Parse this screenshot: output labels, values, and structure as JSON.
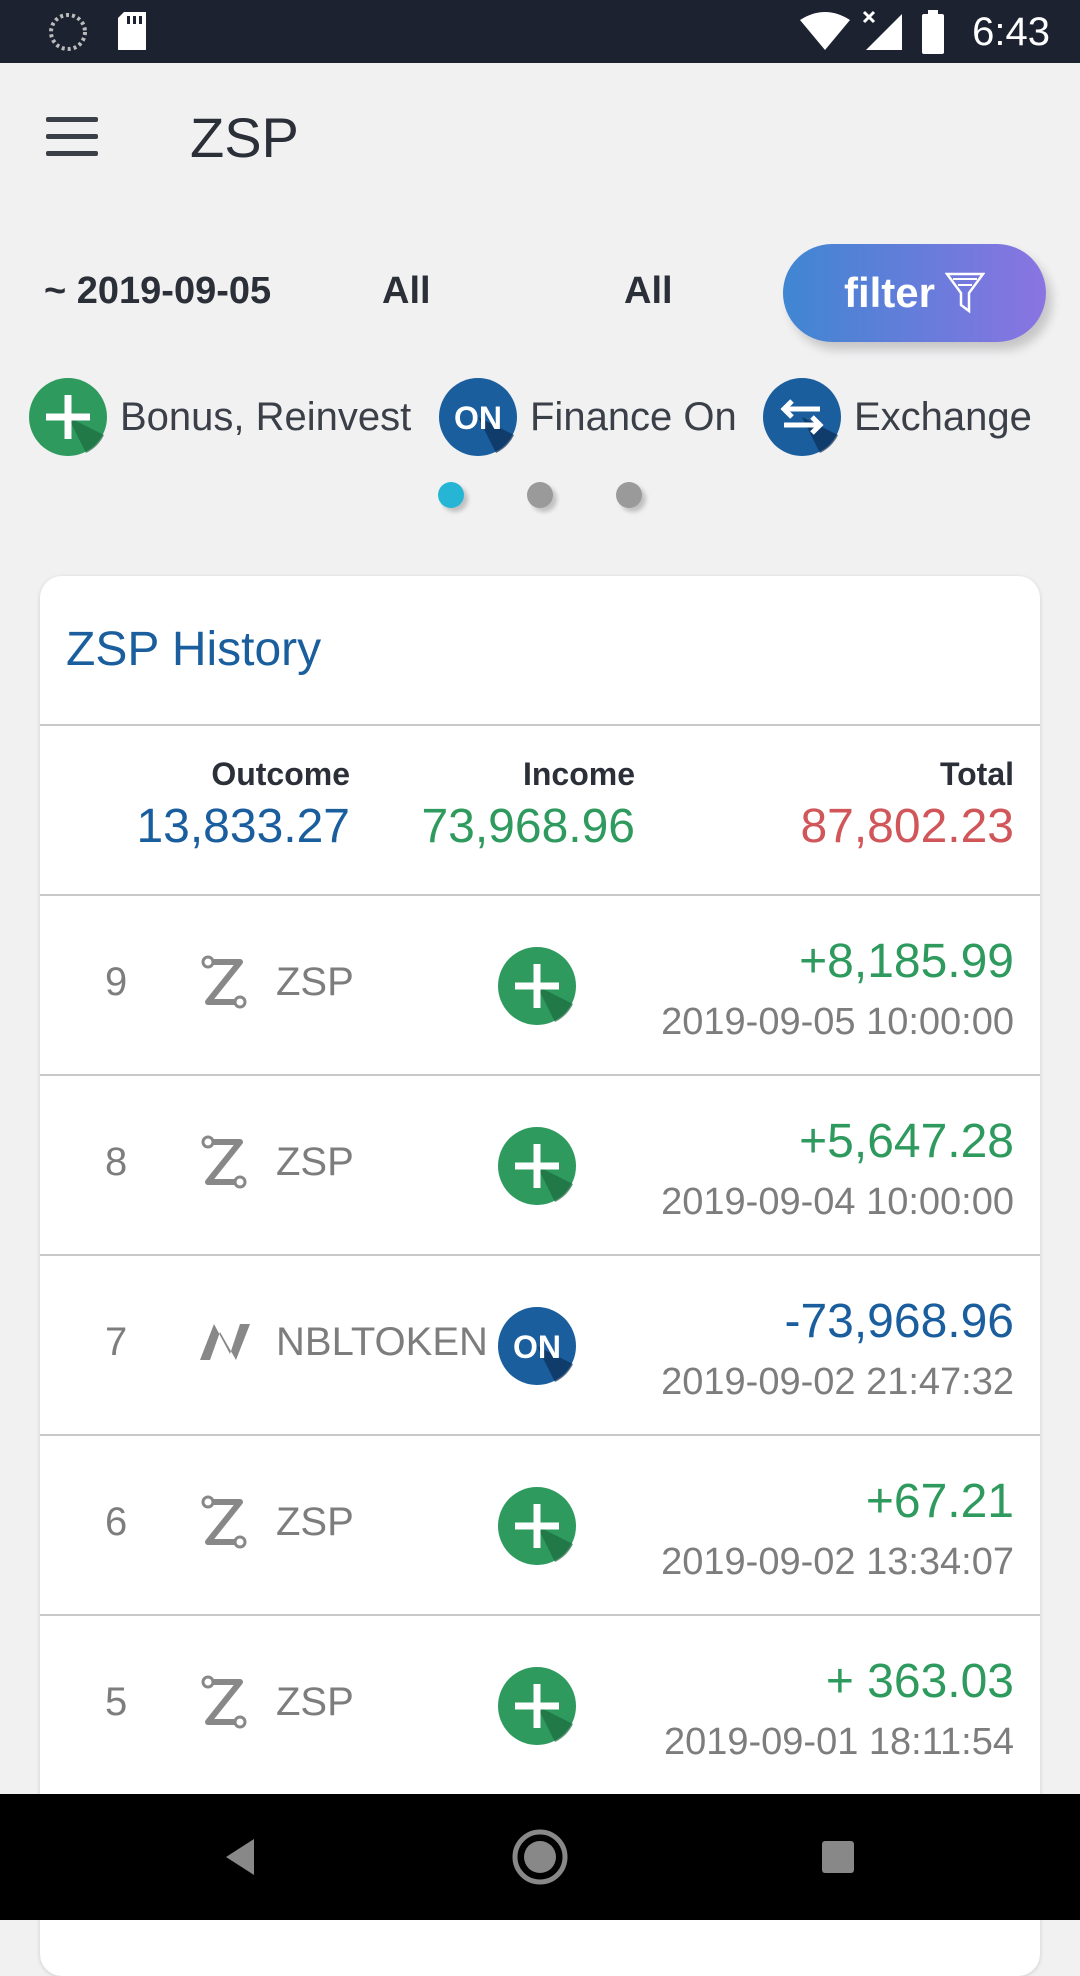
{
  "status_bar": {
    "time": "6:43"
  },
  "app": {
    "title": "ZSP"
  },
  "filters": {
    "date": "~ 2019-09-05",
    "type": "All",
    "category": "All",
    "filter_label": "filter"
  },
  "categories": [
    {
      "label": "Bonus, Reinvest",
      "icon": "plus-icon"
    },
    {
      "label": "Finance On",
      "icon": "finance-on-icon"
    },
    {
      "label": "Exchange",
      "icon": "exchange-icon"
    }
  ],
  "history": {
    "title": "ZSP History",
    "summary": {
      "outcome_label": "Outcome",
      "outcome": "13,833.27",
      "income_label": "Income",
      "income": "73,968.96",
      "total_label": "Total",
      "total": "87,802.23"
    },
    "rows": [
      {
        "num": "9",
        "token": "ZSP",
        "type": "bonus",
        "amount": "+8,185.99",
        "time": "2019-09-05 10:00:00"
      },
      {
        "num": "8",
        "token": "ZSP",
        "type": "bonus",
        "amount": "+5,647.28",
        "time": "2019-09-04 10:00:00"
      },
      {
        "num": "7",
        "token": "NBLTOKEN",
        "type": "finance-on",
        "amount": "-73,968.96",
        "time": "2019-09-02 21:47:32"
      },
      {
        "num": "6",
        "token": "ZSP",
        "type": "bonus",
        "amount": "+67.21",
        "time": "2019-09-02 13:34:07"
      },
      {
        "num": "5",
        "token": "ZSP",
        "type": "bonus",
        "amount": "+ 363.03",
        "time": "2019-09-01 18:11:54"
      }
    ]
  },
  "colors": {
    "outcome": "#1a5e9e",
    "income": "#2e9a5d",
    "total": "#d0565a",
    "bonus": "#2e9a5d",
    "finance": "#1a5e9e"
  }
}
